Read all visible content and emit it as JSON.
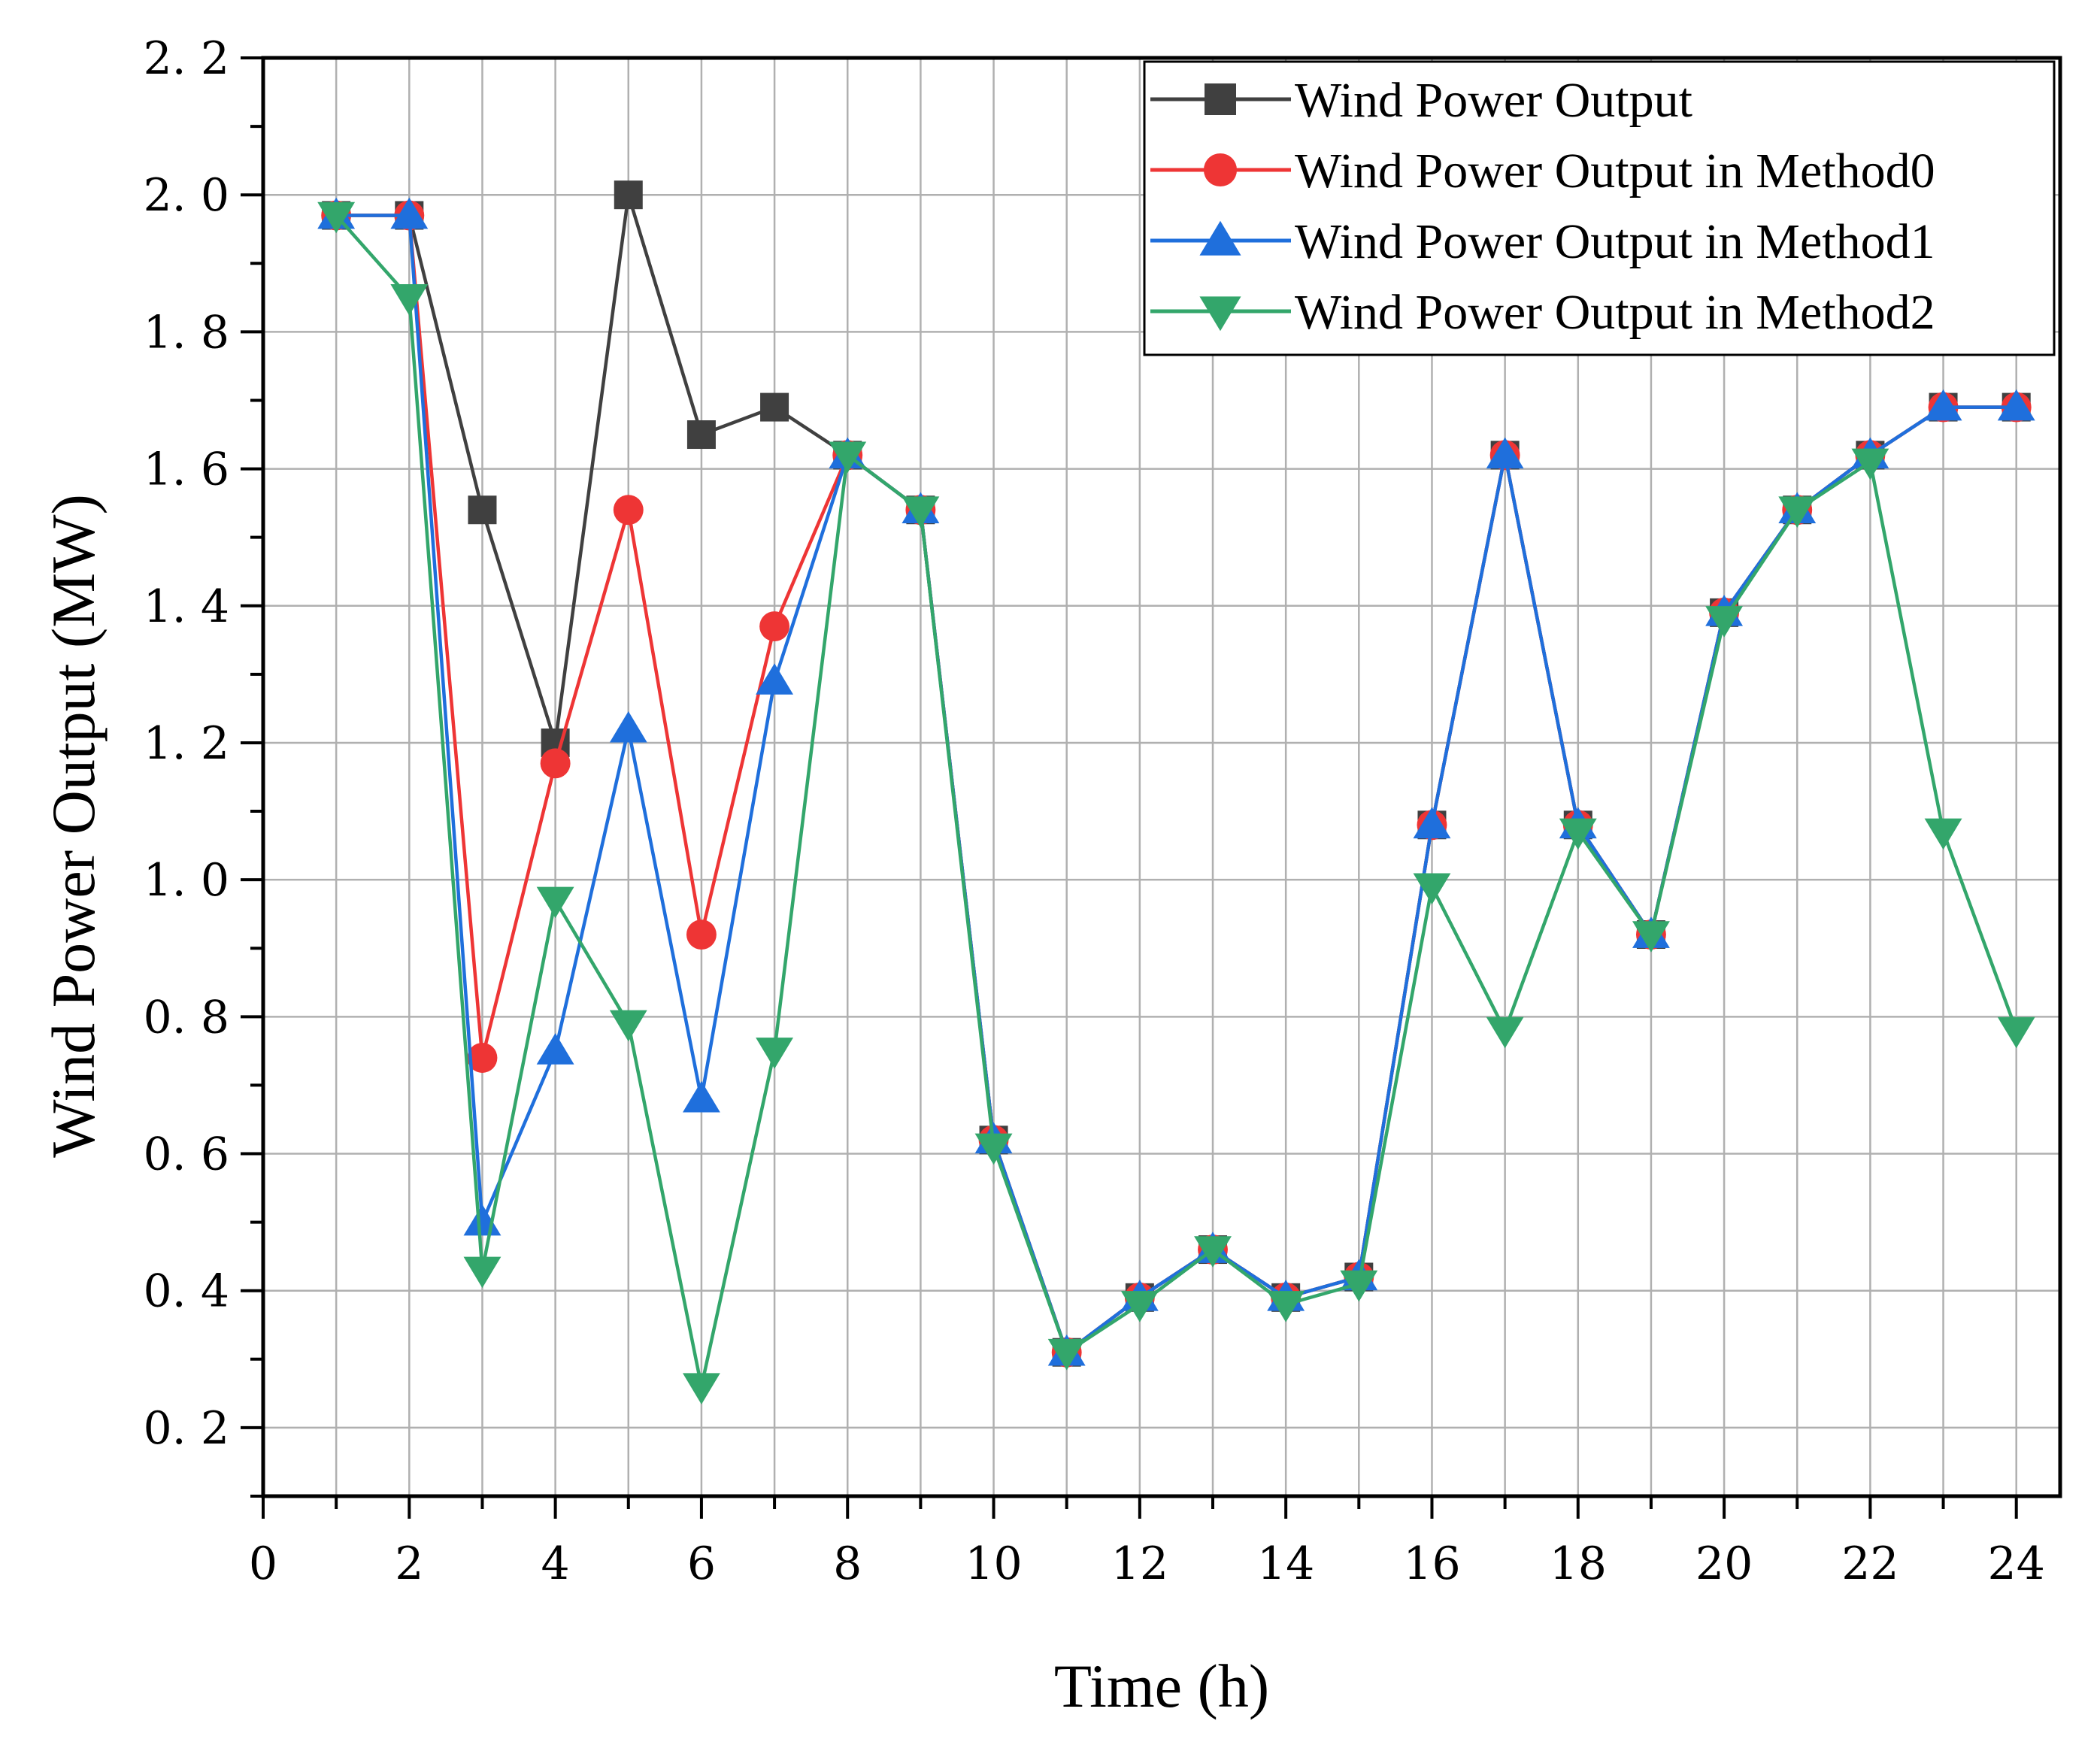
{
  "chart_data": {
    "type": "line",
    "title": "",
    "xlabel": "Time (h)",
    "ylabel": "Wind Power Output (MW)",
    "xlim": [
      0,
      24.6
    ],
    "ylim": [
      0.1,
      2.2
    ],
    "xticks": [
      0,
      2,
      4,
      6,
      8,
      10,
      12,
      14,
      16,
      18,
      20,
      22,
      24
    ],
    "xtick_labels": [
      "0",
      "2",
      "4",
      "6",
      "8",
      "10",
      "12",
      "14",
      "16",
      "18",
      "20",
      "22",
      "24"
    ],
    "yticks": [
      0.2,
      0.4,
      0.6,
      0.8,
      1.0,
      1.2,
      1.4,
      1.6,
      1.8,
      2.0,
      2.2
    ],
    "ytick_labels": [
      "0. 2",
      "0. 4",
      "0. 6",
      "0. 8",
      "1. 0",
      "1. 2",
      "1. 4",
      "1. 6",
      "1. 8",
      "2. 0",
      "2. 2"
    ],
    "grid": true,
    "legend_position": "top-right",
    "x": [
      1,
      2,
      3,
      4,
      5,
      6,
      7,
      8,
      9,
      10,
      11,
      12,
      13,
      14,
      15,
      16,
      17,
      18,
      19,
      20,
      21,
      22,
      23,
      24
    ],
    "series": [
      {
        "name": "Wind Power Output",
        "color": "#404040",
        "marker": "square",
        "values": [
          1.97,
          1.97,
          1.54,
          1.2,
          2.0,
          1.65,
          1.69,
          1.62,
          1.54,
          0.62,
          0.31,
          0.39,
          0.46,
          0.39,
          0.42,
          1.08,
          1.62,
          1.08,
          0.92,
          1.39,
          1.54,
          1.62,
          1.69,
          1.69
        ]
      },
      {
        "name": "Wind Power Output in Method0",
        "color": "#ee3535",
        "marker": "circle",
        "values": [
          1.97,
          1.97,
          0.74,
          1.17,
          1.54,
          0.92,
          1.37,
          1.62,
          1.54,
          0.62,
          0.31,
          0.39,
          0.46,
          0.39,
          0.42,
          1.08,
          1.62,
          1.08,
          0.92,
          1.39,
          1.54,
          1.62,
          1.69,
          1.69
        ]
      },
      {
        "name": "Wind Power Output in Method1",
        "color": "#1f6fdc",
        "marker": "triangle-up",
        "values": [
          1.97,
          1.97,
          0.5,
          0.75,
          1.22,
          0.68,
          1.29,
          1.62,
          1.54,
          0.62,
          0.31,
          0.39,
          0.46,
          0.39,
          0.42,
          1.08,
          1.62,
          1.08,
          0.92,
          1.39,
          1.54,
          1.62,
          1.69,
          1.69
        ]
      },
      {
        "name": "Wind Power Output in Method2",
        "color": "#33a66b",
        "marker": "triangle-down",
        "values": [
          1.97,
          1.85,
          0.43,
          0.97,
          0.79,
          0.26,
          0.75,
          1.62,
          1.54,
          0.61,
          0.31,
          0.38,
          0.46,
          0.38,
          0.41,
          0.99,
          0.78,
          1.07,
          0.92,
          1.38,
          1.54,
          1.61,
          1.07,
          0.78
        ]
      }
    ]
  }
}
